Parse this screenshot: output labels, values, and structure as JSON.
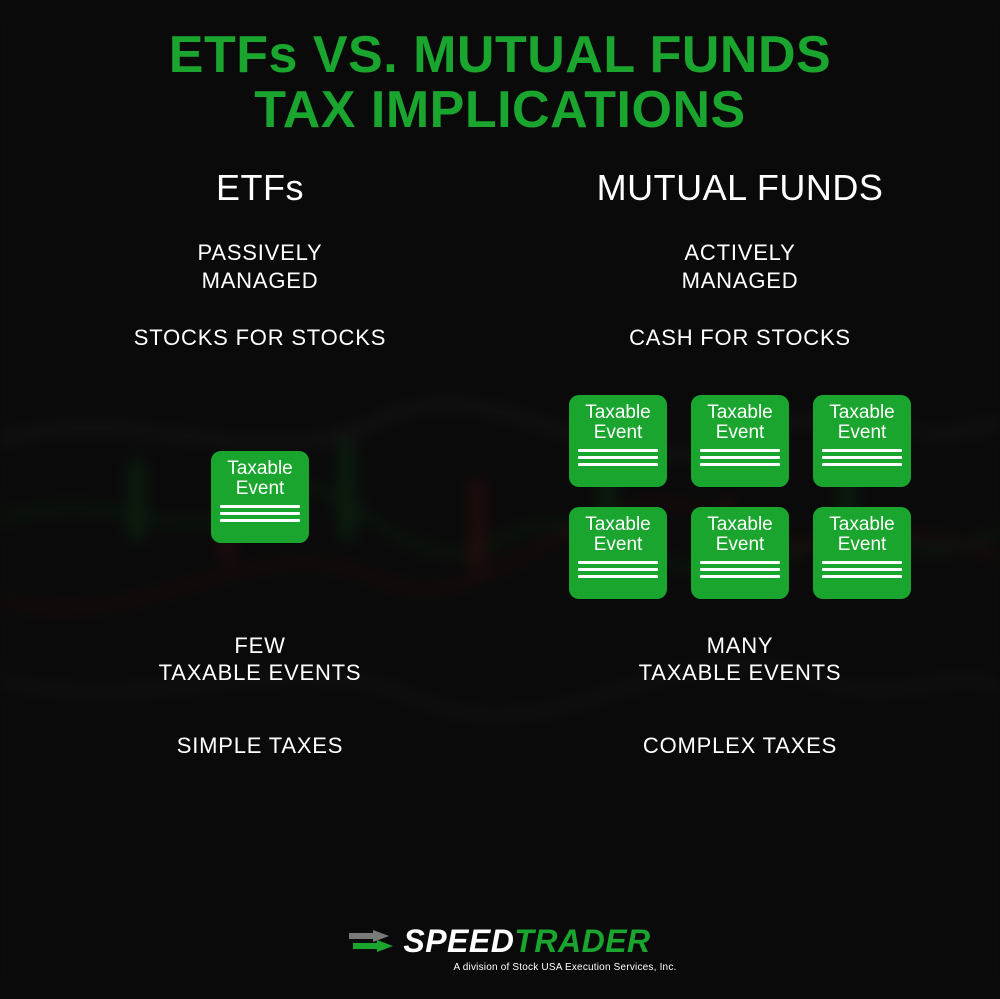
{
  "colors": {
    "accent_green": "#1aa52e",
    "card_green": "#1aa52e",
    "white": "#ffffff",
    "grey": "#7a7a7a",
    "bg": "#0a0a0a"
  },
  "title_line1": "ETFs VS. MUTUAL FUNDS",
  "title_line2": "TAX IMPLICATIONS",
  "title_fontsize": 52,
  "etf": {
    "header": "ETFs",
    "managed_l1": "PASSIVELY",
    "managed_l2": "MANAGED",
    "exchange": "STOCKS FOR STOCKS",
    "card_count": 1,
    "events_l1": "FEW",
    "events_l2": "TAXABLE EVENTS",
    "taxes": "SIMPLE TAXES"
  },
  "mutual": {
    "header": "MUTUAL FUNDS",
    "managed_l1": "ACTIVELY",
    "managed_l2": "MANAGED",
    "exchange": "CASH FOR STOCKS",
    "card_count": 6,
    "events_l1": "MANY",
    "events_l2": "TAXABLE EVENTS",
    "taxes": "COMPLEX TAXES"
  },
  "card": {
    "label_l1": "Taxable",
    "label_l2": "Event",
    "width": 98,
    "height": 92,
    "radius": 10
  },
  "logo": {
    "speed": "SPEED",
    "trader": "TRADER",
    "tagline": "A division of Stock USA Execution Services, Inc."
  },
  "body_fontsize": 22,
  "header_fontsize": 36
}
